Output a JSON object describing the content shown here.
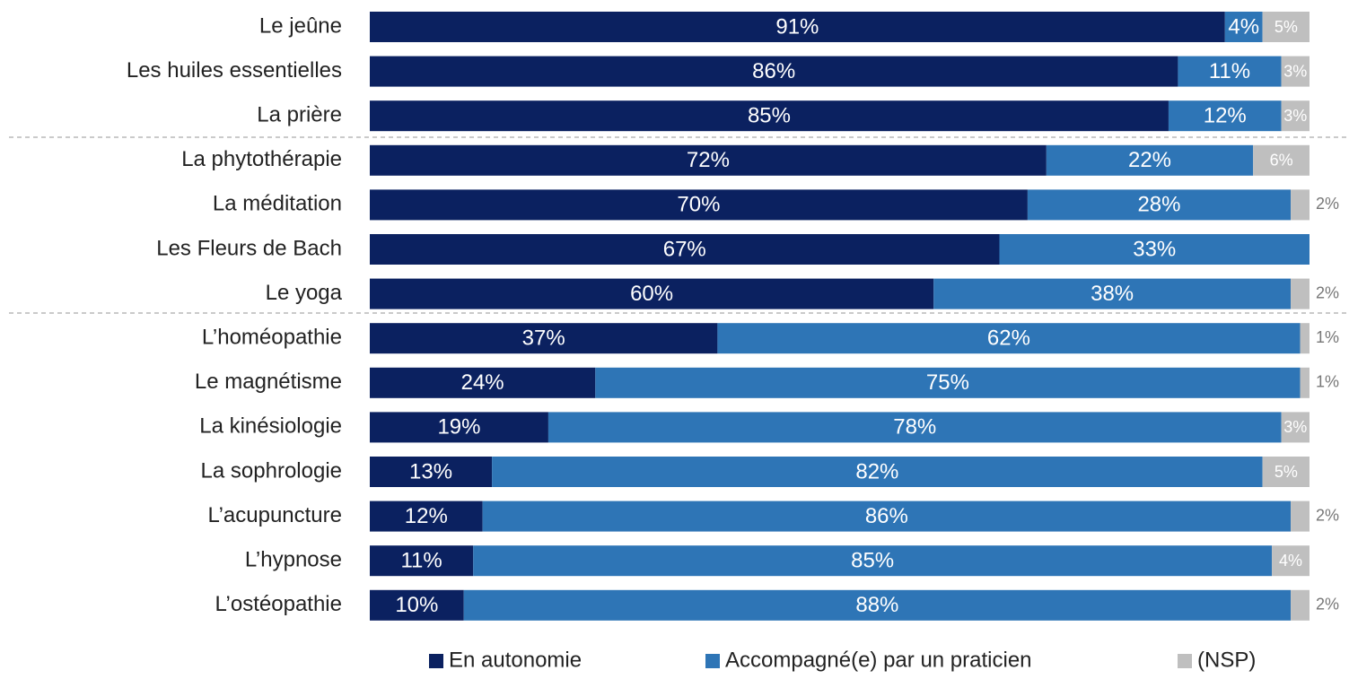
{
  "chart_data": {
    "type": "stacked-bar-horizontal",
    "categories": [
      "Le jeûne",
      "Les huiles essentielles",
      "La prière",
      "La phytothérapie",
      "La méditation",
      "Les Fleurs de Bach",
      "Le yoga",
      "L’homéopathie",
      "Le magnétisme",
      "La kinésiologie",
      "La sophrologie",
      "L’acupuncture",
      "L’hypnose",
      "L’ostéopathie"
    ],
    "xlim": [
      0,
      100
    ],
    "series": [
      {
        "name": "En autonomie",
        "color": "#0b2160",
        "values": [
          91,
          86,
          85,
          72,
          70,
          67,
          60,
          37,
          24,
          19,
          13,
          12,
          11,
          10
        ],
        "value_labels": [
          "91%",
          "86%",
          "85%",
          "72%",
          "70%",
          "67%",
          "60%",
          "37%",
          "24%",
          "19%",
          "13%",
          "12%",
          "11%",
          "10%"
        ]
      },
      {
        "name": "Accompagné(e) par un praticien",
        "color": "#2e75b6",
        "values": [
          4,
          11,
          12,
          22,
          28,
          33,
          38,
          62,
          75,
          78,
          82,
          86,
          85,
          88
        ],
        "value_labels": [
          "4%",
          "11%",
          "12%",
          "22%",
          "28%",
          "33%",
          "38%",
          "62%",
          "75%",
          "78%",
          "82%",
          "86%",
          "85%",
          "88%"
        ]
      },
      {
        "name": "(NSP)",
        "color": "#bfbfbf",
        "values": [
          5,
          3,
          3,
          6,
          2,
          null,
          2,
          1,
          1,
          3,
          5,
          2,
          4,
          2
        ],
        "value_labels": [
          "5%",
          "3%",
          "3%",
          "6%",
          "2%",
          null,
          "2%",
          "1%",
          "1%",
          "3%",
          "5%",
          "2%",
          "4%",
          "2%"
        ]
      }
    ],
    "legend": "bottom"
  }
}
